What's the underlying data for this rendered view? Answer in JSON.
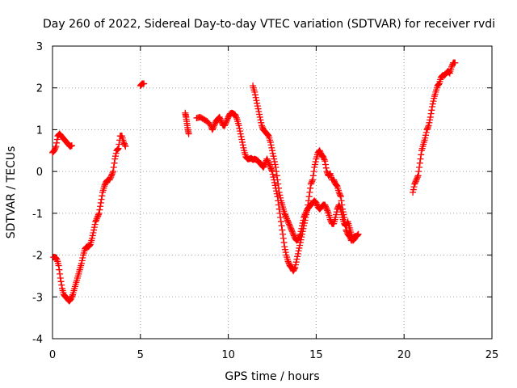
{
  "chart_data": {
    "type": "scatter",
    "title": "Day 260 of 2022, Sidereal Day-to-day VTEC variation (SDTVAR) for receiver rvdi",
    "xlabel": "GPS time / hours",
    "ylabel": "SDTVAR / TECUs",
    "xlim": [
      0,
      25
    ],
    "ylim": [
      -4,
      3
    ],
    "x_ticks": [
      0,
      5,
      10,
      15,
      20,
      25
    ],
    "x_tick_labels": [
      "0",
      "5",
      "10",
      "15",
      "20",
      "25"
    ],
    "y_ticks": [
      -4,
      -3,
      -2,
      -1,
      0,
      1,
      2,
      3
    ],
    "y_tick_labels": [
      "-4",
      "-3",
      "-2",
      "-1",
      "0",
      "1",
      "2",
      "3"
    ],
    "grid": true,
    "marker": "+",
    "series": [
      {
        "name": "SDTVAR",
        "color": "#ff0000",
        "segments": [
          [
            [
              0.0,
              0.45
            ],
            [
              0.1,
              0.5
            ],
            [
              0.2,
              0.6
            ],
            [
              0.3,
              0.85
            ],
            [
              0.4,
              0.9
            ],
            [
              0.5,
              0.85
            ],
            [
              0.6,
              0.8
            ],
            [
              0.7,
              0.75
            ],
            [
              0.8,
              0.7
            ],
            [
              0.9,
              0.65
            ],
            [
              1.0,
              0.6
            ],
            [
              1.1,
              0.62
            ]
          ],
          [
            [
              0.05,
              -2.05
            ],
            [
              0.15,
              -2.05
            ],
            [
              0.25,
              -2.1
            ],
            [
              0.35,
              -2.25
            ],
            [
              0.45,
              -2.55
            ],
            [
              0.55,
              -2.8
            ],
            [
              0.65,
              -2.95
            ],
            [
              0.75,
              -3.0
            ],
            [
              0.85,
              -3.05
            ],
            [
              0.95,
              -3.1
            ],
            [
              1.05,
              -3.05
            ],
            [
              1.15,
              -2.95
            ],
            [
              1.25,
              -2.8
            ],
            [
              1.35,
              -2.65
            ],
            [
              1.45,
              -2.5
            ],
            [
              1.55,
              -2.35
            ],
            [
              1.65,
              -2.2
            ],
            [
              1.75,
              -2.0
            ],
            [
              1.85,
              -1.85
            ],
            [
              1.95,
              -1.8
            ],
            [
              2.05,
              -1.8
            ],
            [
              2.15,
              -1.75
            ],
            [
              2.25,
              -1.6
            ],
            [
              2.35,
              -1.4
            ],
            [
              2.45,
              -1.2
            ],
            [
              2.55,
              -1.1
            ],
            [
              2.65,
              -1.0
            ],
            [
              2.75,
              -0.75
            ],
            [
              2.85,
              -0.5
            ],
            [
              2.95,
              -0.35
            ],
            [
              3.05,
              -0.25
            ],
            [
              3.15,
              -0.2
            ],
            [
              3.25,
              -0.2
            ],
            [
              3.35,
              -0.1
            ],
            [
              3.45,
              0.0
            ],
            [
              3.55,
              0.3
            ],
            [
              3.65,
              0.5
            ],
            [
              3.75,
              0.55
            ],
            [
              3.85,
              0.85
            ],
            [
              3.95,
              0.85
            ],
            [
              4.05,
              0.7
            ],
            [
              4.15,
              0.6
            ]
          ],
          [
            [
              5.0,
              2.05
            ],
            [
              5.1,
              2.1
            ],
            [
              5.2,
              2.1
            ]
          ],
          [
            [
              7.55,
              1.4
            ],
            [
              7.6,
              1.3
            ],
            [
              7.65,
              1.15
            ],
            [
              7.7,
              1.0
            ],
            [
              7.75,
              0.9
            ]
          ],
          [
            [
              8.2,
              1.28
            ],
            [
              8.4,
              1.3
            ],
            [
              8.6,
              1.25
            ],
            [
              8.8,
              1.2
            ],
            [
              9.0,
              1.1
            ],
            [
              9.1,
              1.0
            ],
            [
              9.2,
              1.1
            ],
            [
              9.3,
              1.2
            ],
            [
              9.4,
              1.25
            ],
            [
              9.5,
              1.3
            ],
            [
              9.6,
              1.2
            ],
            [
              9.7,
              1.1
            ],
            [
              9.8,
              1.1
            ],
            [
              9.9,
              1.2
            ],
            [
              10.0,
              1.3
            ],
            [
              10.1,
              1.38
            ],
            [
              10.2,
              1.4
            ],
            [
              10.3,
              1.38
            ],
            [
              10.4,
              1.35
            ],
            [
              10.5,
              1.25
            ],
            [
              10.6,
              1.1
            ],
            [
              10.7,
              0.9
            ],
            [
              10.8,
              0.7
            ],
            [
              10.9,
              0.5
            ],
            [
              11.0,
              0.35
            ],
            [
              11.1,
              0.3
            ],
            [
              11.2,
              0.3
            ],
            [
              11.3,
              0.32
            ],
            [
              11.4,
              0.28
            ],
            [
              11.5,
              0.3
            ],
            [
              11.6,
              0.28
            ],
            [
              11.7,
              0.25
            ],
            [
              11.8,
              0.2
            ],
            [
              11.9,
              0.15
            ],
            [
              12.0,
              0.1
            ],
            [
              12.1,
              0.2
            ],
            [
              12.2,
              0.3
            ],
            [
              12.3,
              0.2
            ],
            [
              12.4,
              0.1
            ],
            [
              12.5,
              0.0
            ],
            [
              12.6,
              -0.2
            ],
            [
              12.7,
              -0.4
            ],
            [
              12.8,
              -0.6
            ],
            [
              12.9,
              -0.9
            ],
            [
              13.0,
              -1.2
            ],
            [
              13.1,
              -1.5
            ],
            [
              13.2,
              -1.8
            ],
            [
              13.3,
              -2.0
            ],
            [
              13.4,
              -2.15
            ],
            [
              13.5,
              -2.25
            ],
            [
              13.6,
              -2.3
            ],
            [
              13.7,
              -2.38
            ],
            [
              13.8,
              -2.3
            ],
            [
              13.9,
              -2.1
            ],
            [
              14.0,
              -1.9
            ],
            [
              14.1,
              -1.7
            ],
            [
              14.2,
              -1.5
            ],
            [
              14.3,
              -1.3
            ],
            [
              14.4,
              -1.1
            ],
            [
              14.5,
              -0.9
            ],
            [
              14.6,
              -0.6
            ],
            [
              14.7,
              -0.3
            ],
            [
              14.8,
              -0.2
            ],
            [
              14.9,
              0.1
            ],
            [
              15.0,
              0.3
            ],
            [
              15.1,
              0.45
            ],
            [
              15.2,
              0.5
            ],
            [
              15.3,
              0.4
            ],
            [
              15.4,
              0.35
            ],
            [
              15.5,
              0.25
            ],
            [
              15.6,
              0.0
            ],
            [
              15.7,
              -0.1
            ],
            [
              15.8,
              -0.05
            ],
            [
              15.9,
              -0.2
            ],
            [
              16.0,
              -0.2
            ],
            [
              16.1,
              -0.3
            ],
            [
              16.2,
              -0.35
            ],
            [
              16.3,
              -0.5
            ],
            [
              16.4,
              -0.6
            ],
            [
              16.5,
              -0.9
            ],
            [
              16.6,
              -1.1
            ],
            [
              16.7,
              -1.4
            ],
            [
              16.8,
              -1.5
            ],
            [
              16.9,
              -1.55
            ],
            [
              17.0,
              -1.65
            ],
            [
              17.1,
              -1.6
            ],
            [
              17.2,
              -1.55
            ],
            [
              17.3,
              -1.55
            ],
            [
              17.4,
              -1.5
            ]
          ],
          [
            [
              11.4,
              2.05
            ],
            [
              11.5,
              1.9
            ],
            [
              11.6,
              1.7
            ],
            [
              11.7,
              1.5
            ],
            [
              11.8,
              1.3
            ],
            [
              11.9,
              1.1
            ],
            [
              12.0,
              1.0
            ],
            [
              12.1,
              0.95
            ],
            [
              12.2,
              0.9
            ],
            [
              12.3,
              0.85
            ],
            [
              12.4,
              0.7
            ],
            [
              12.5,
              0.5
            ],
            [
              12.6,
              0.3
            ],
            [
              12.7,
              0.1
            ],
            [
              12.8,
              -0.2
            ],
            [
              12.9,
              -0.5
            ],
            [
              13.0,
              -0.7
            ],
            [
              13.1,
              -0.85
            ],
            [
              13.2,
              -1.0
            ],
            [
              13.3,
              -1.1
            ],
            [
              13.4,
              -1.2
            ],
            [
              13.5,
              -1.3
            ],
            [
              13.6,
              -1.4
            ],
            [
              13.7,
              -1.5
            ],
            [
              13.8,
              -1.6
            ],
            [
              13.9,
              -1.65
            ],
            [
              14.0,
              -1.6
            ],
            [
              14.1,
              -1.5
            ],
            [
              14.2,
              -1.3
            ],
            [
              14.3,
              -1.1
            ],
            [
              14.4,
              -1.0
            ],
            [
              14.5,
              -0.9
            ],
            [
              14.6,
              -0.85
            ],
            [
              14.7,
              -0.8
            ],
            [
              14.8,
              -0.75
            ],
            [
              14.9,
              -0.7
            ],
            [
              15.0,
              -0.75
            ],
            [
              15.1,
              -0.85
            ],
            [
              15.2,
              -0.9
            ],
            [
              15.3,
              -0.85
            ],
            [
              15.4,
              -0.8
            ],
            [
              15.5,
              -0.8
            ],
            [
              15.6,
              -0.9
            ],
            [
              15.7,
              -1.0
            ],
            [
              15.8,
              -1.15
            ],
            [
              15.9,
              -1.25
            ],
            [
              16.0,
              -1.25
            ],
            [
              16.1,
              -1.1
            ],
            [
              16.2,
              -0.9
            ],
            [
              16.3,
              -0.8
            ],
            [
              16.4,
              -0.9
            ],
            [
              16.5,
              -1.1
            ],
            [
              16.6,
              -1.25
            ],
            [
              16.7,
              -1.3
            ],
            [
              16.8,
              -1.2
            ],
            [
              16.9,
              -1.35
            ],
            [
              17.0,
              -1.5
            ],
            [
              17.1,
              -1.65
            ],
            [
              17.2,
              -1.6
            ]
          ],
          [
            [
              20.5,
              -0.5
            ],
            [
              20.6,
              -0.3
            ],
            [
              20.7,
              -0.2
            ],
            [
              20.8,
              -0.1
            ],
            [
              20.9,
              0.2
            ],
            [
              21.0,
              0.5
            ],
            [
              21.1,
              0.65
            ],
            [
              21.2,
              0.8
            ],
            [
              21.3,
              1.0
            ],
            [
              21.4,
              1.1
            ],
            [
              21.5,
              1.3
            ],
            [
              21.6,
              1.55
            ],
            [
              21.7,
              1.75
            ],
            [
              21.8,
              1.9
            ],
            [
              21.9,
              2.05
            ],
            [
              22.0,
              2.1
            ],
            [
              22.1,
              2.25
            ],
            [
              22.2,
              2.3
            ],
            [
              22.3,
              2.3
            ],
            [
              22.4,
              2.35
            ],
            [
              22.5,
              2.4
            ],
            [
              22.6,
              2.35
            ],
            [
              22.7,
              2.5
            ],
            [
              22.8,
              2.6
            ],
            [
              22.9,
              2.6
            ]
          ]
        ]
      }
    ]
  }
}
